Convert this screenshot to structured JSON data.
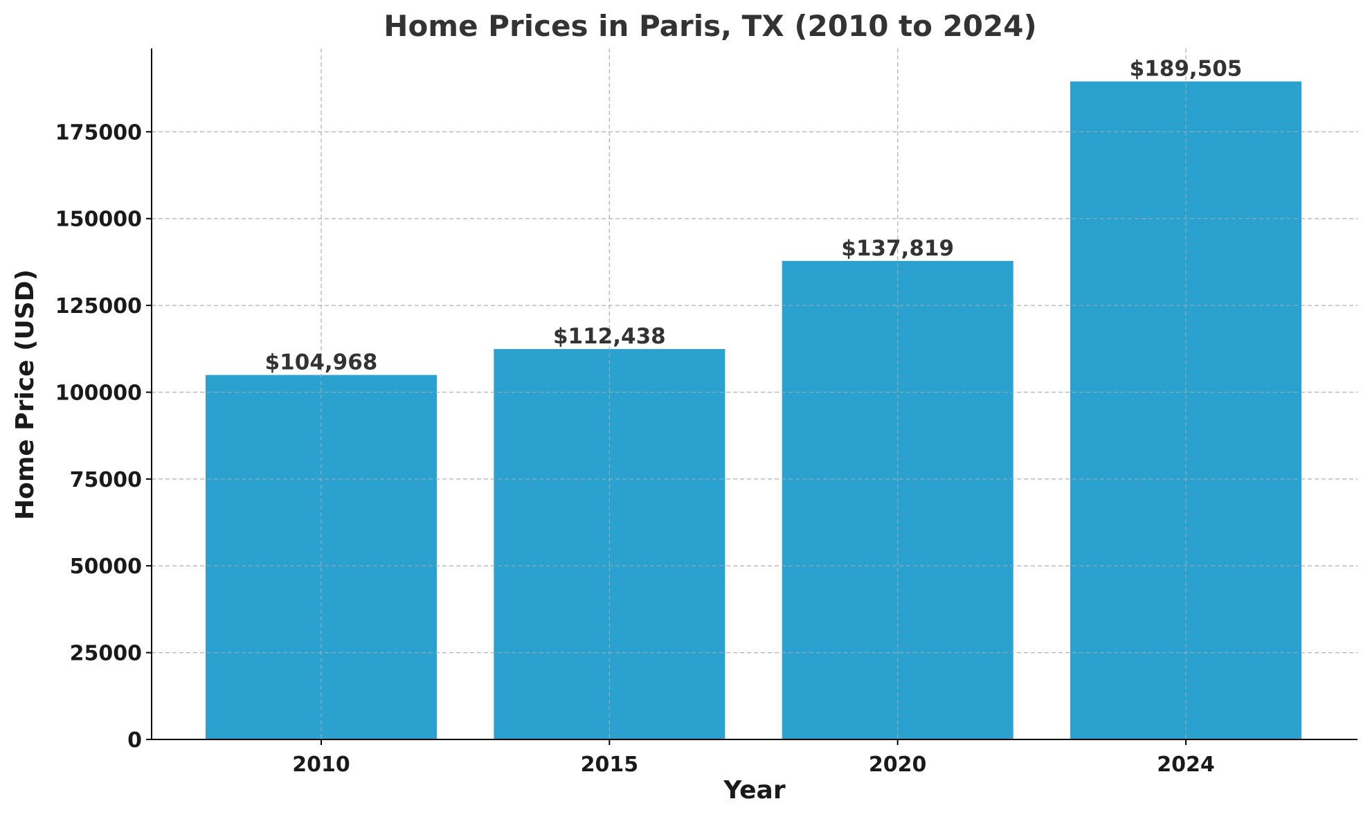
{
  "chart_data": {
    "type": "bar",
    "title": "Home Prices in Paris, TX (2010 to 2024)",
    "xlabel": "Year",
    "ylabel": "Home Price (USD)",
    "categories": [
      "2010",
      "2015",
      "2020",
      "2024"
    ],
    "values": [
      104968,
      112438,
      137819,
      189505
    ],
    "value_labels": [
      "$104,968",
      "$112,438",
      "$137,819",
      "$189,505"
    ],
    "ylim": [
      0,
      199000
    ],
    "yticks": [
      0,
      25000,
      50000,
      75000,
      100000,
      125000,
      150000,
      175000
    ],
    "ytick_labels": [
      "0",
      "25000",
      "50000",
      "75000",
      "100000",
      "125000",
      "150000",
      "175000"
    ],
    "grid": true,
    "bar_color": "#2aa1ce"
  }
}
